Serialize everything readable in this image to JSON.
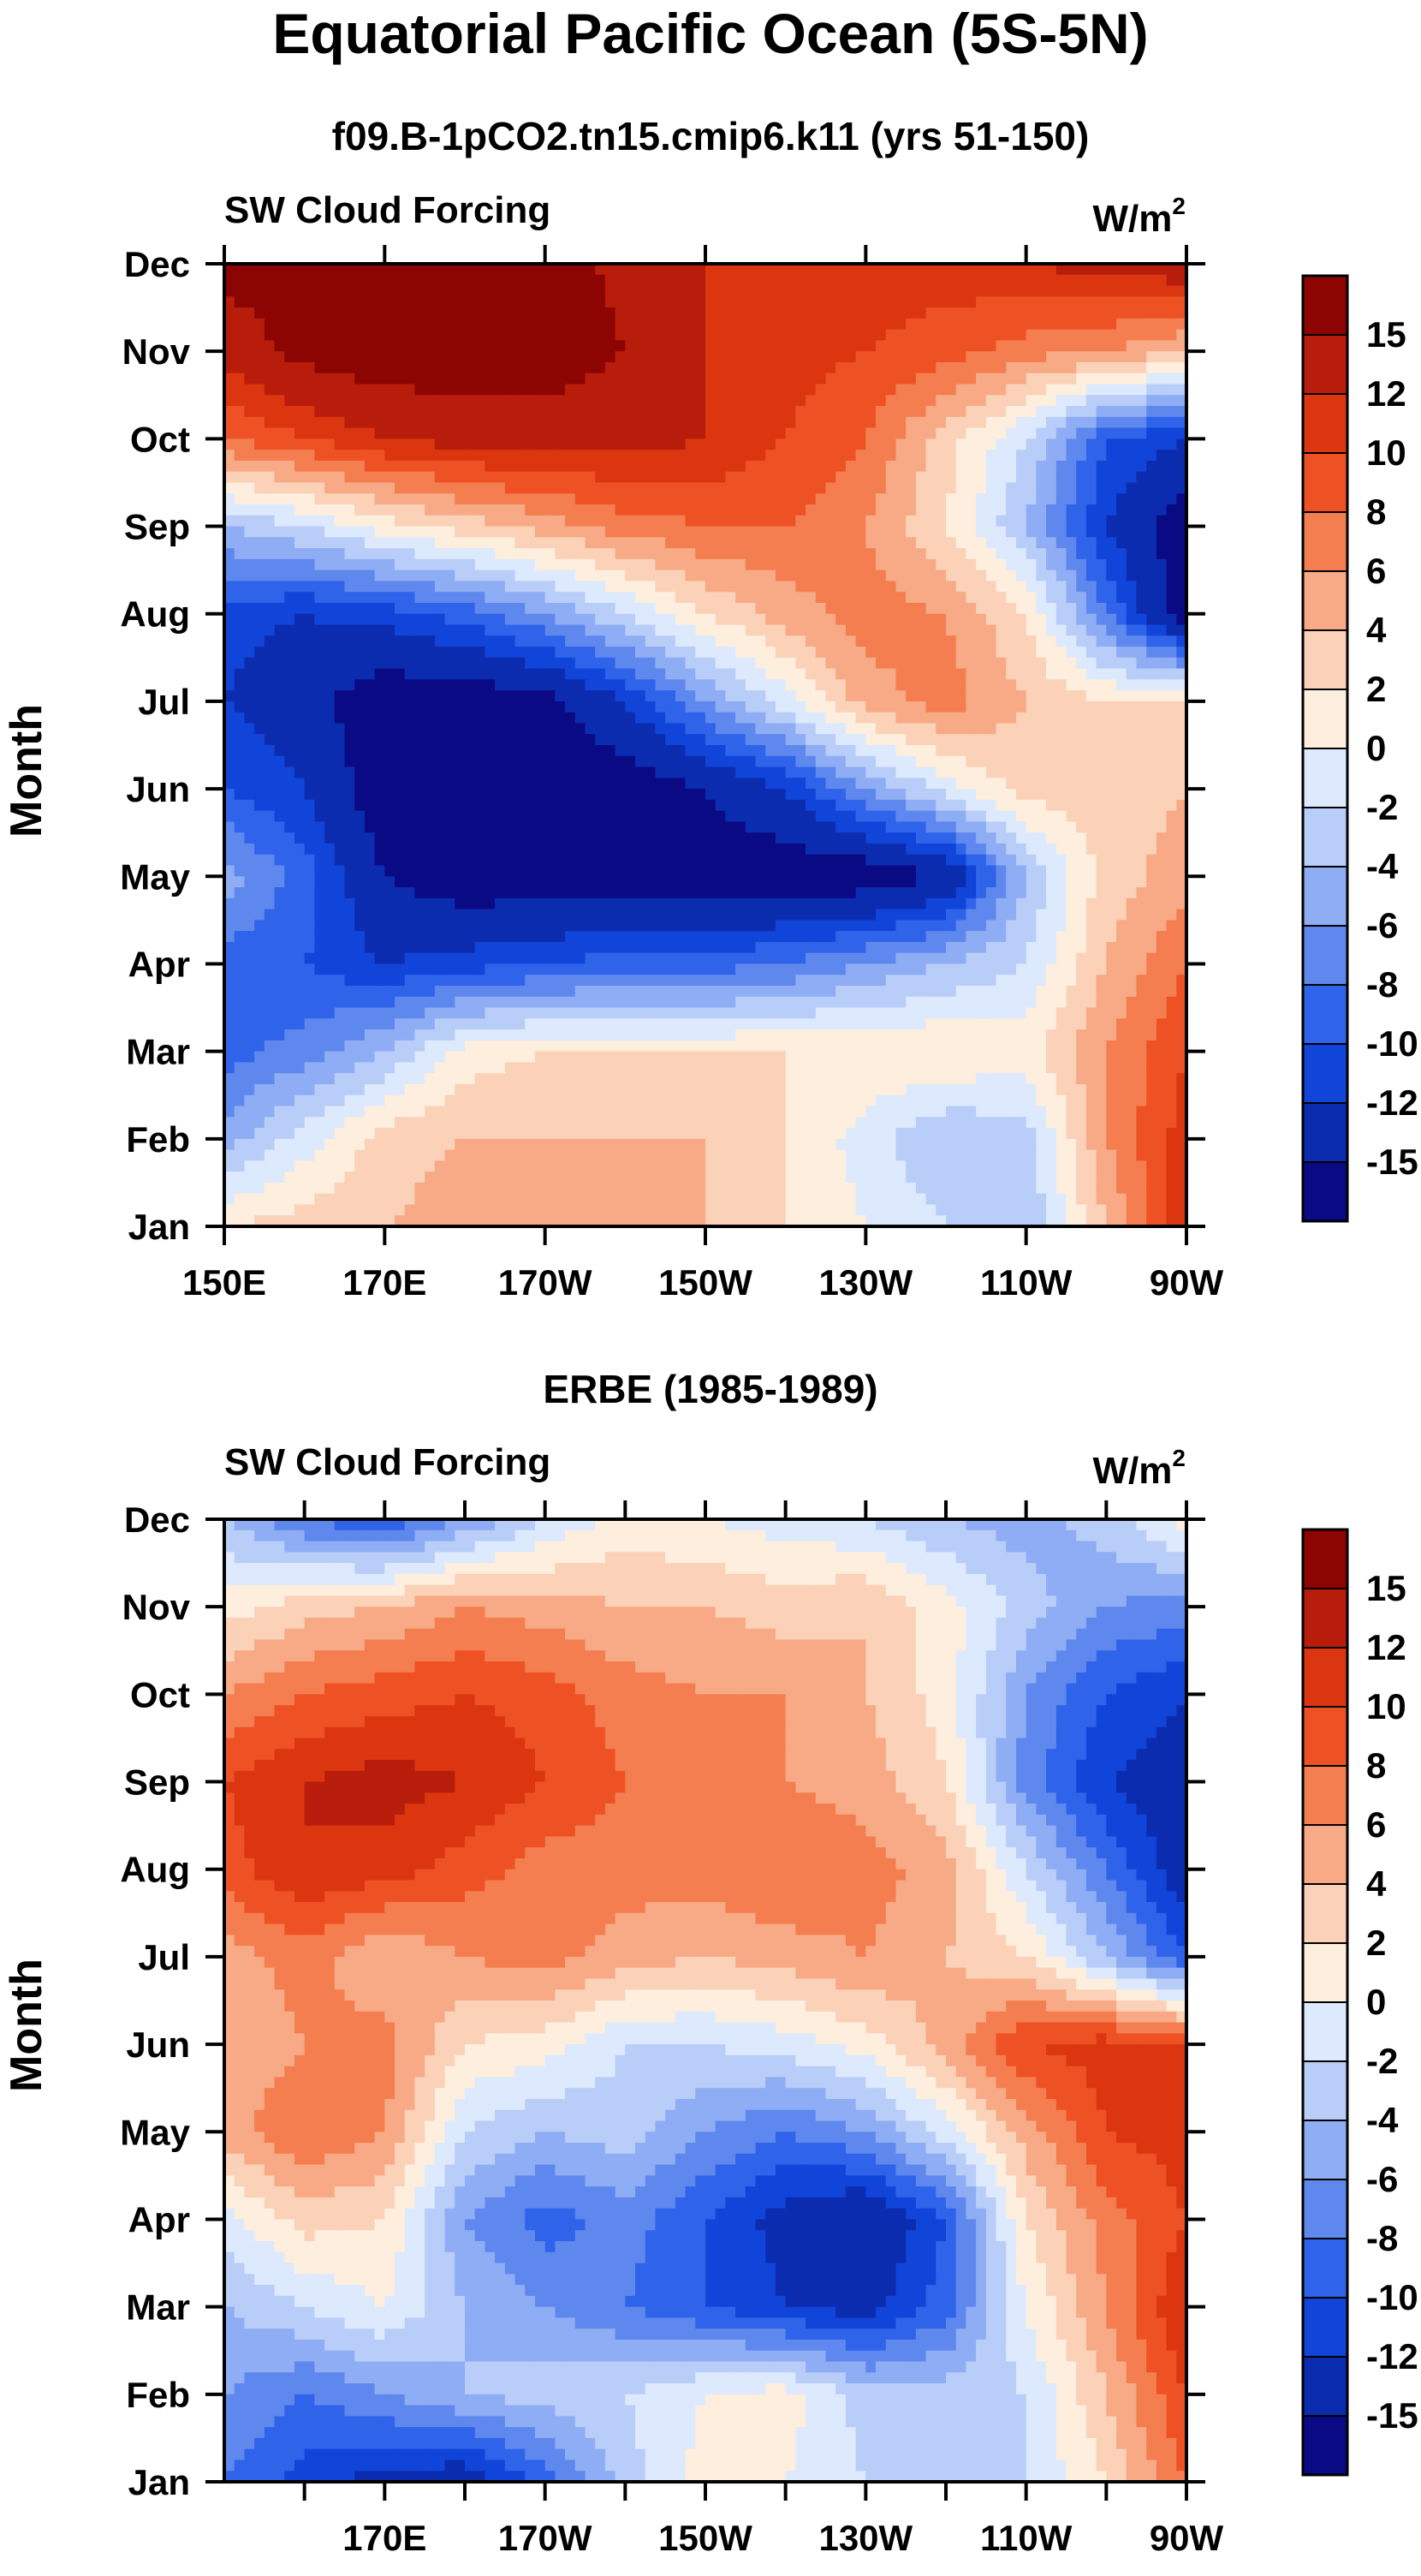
{
  "title": "Equatorial Pacific Ocean (5S-5N)",
  "chart_data": [
    {
      "type": "heatmap",
      "subtitle": "f09.B-1pCO2.tn15.cmip6.k11 (yrs 51-150)",
      "left_label": "SW Cloud Forcing",
      "units_text": "W/m",
      "units_sup": "2",
      "ylabel": "Month",
      "y_ticks": [
        "Jan",
        "Feb",
        "Mar",
        "Apr",
        "May",
        "Jun",
        "Jul",
        "Aug",
        "Sep",
        "Oct",
        "Nov",
        "Dec"
      ],
      "x_range_deg_east": [
        150,
        270
      ],
      "x_ticks": [
        {
          "lon": 150,
          "label": "150E"
        },
        {
          "lon": 170,
          "label": "170E"
        },
        {
          "lon": 190,
          "label": "170W"
        },
        {
          "lon": 210,
          "label": "150W"
        },
        {
          "lon": 230,
          "label": "130W"
        },
        {
          "lon": 250,
          "label": "110W"
        },
        {
          "lon": 270,
          "label": "90W"
        }
      ],
      "colorbar_labels": [
        "15",
        "12",
        "10",
        "8",
        "6",
        "4",
        "2",
        "0",
        "-2",
        "-4",
        "-6",
        "-8",
        "-10",
        "-12",
        "-15"
      ],
      "levels": [
        -15,
        -12,
        -10,
        -8,
        -6,
        -4,
        -2,
        0,
        2,
        4,
        6,
        8,
        10,
        12,
        15
      ],
      "colors": [
        "#0a0a85",
        "#0c2cb0",
        "#1144d8",
        "#2f63ea",
        "#5f88ee",
        "#8eadf4",
        "#b9cdf9",
        "#dde9fc",
        "#fdeede",
        "#fbd1b8",
        "#f7aa85",
        "#f47e50",
        "#ee5224",
        "#db3610",
        "#b81c0a",
        "#8c0503"
      ],
      "lons": [
        150,
        160,
        170,
        180,
        190,
        200,
        210,
        220,
        230,
        240,
        250,
        260,
        270
      ],
      "months": [
        "Jan",
        "Feb",
        "Mar",
        "Apr",
        "May",
        "Jun",
        "Jul",
        "Aug",
        "Sep",
        "Oct",
        "Nov",
        "Dec"
      ],
      "values": [
        [
          2,
          3,
          4,
          5,
          5,
          5,
          4,
          2,
          0,
          -2,
          -4,
          4,
          12
        ],
        [
          -5,
          -1,
          3,
          4,
          4,
          4,
          4,
          2,
          -1,
          -4,
          -3,
          6,
          11
        ],
        [
          -9,
          -7,
          -4,
          1,
          2,
          2,
          2,
          2,
          2,
          2,
          1,
          6,
          10
        ],
        [
          -9,
          -10,
          -12,
          -11,
          -10,
          -9,
          -9,
          -8,
          -6,
          -4,
          -2,
          4,
          8
        ],
        [
          -5,
          -9,
          -15,
          -17,
          -17,
          -17,
          -17,
          -17,
          -17,
          -15,
          -4,
          3,
          5
        ],
        [
          -10,
          -12,
          -17,
          -17,
          -17,
          -17,
          -15,
          -12,
          -6,
          -1,
          3,
          3,
          4
        ],
        [
          -12,
          -14,
          -17,
          -17,
          -16,
          -12,
          -6,
          -1,
          5,
          7,
          4,
          2,
          2
        ],
        [
          -11,
          -12,
          -11,
          -9,
          -6,
          -2,
          2,
          5,
          7,
          6,
          2,
          -8,
          -17
        ],
        [
          -4,
          -2,
          1,
          3,
          5,
          7,
          8,
          8,
          6,
          2,
          -4,
          -12,
          -17
        ],
        [
          8,
          10,
          12,
          13,
          13,
          13,
          12,
          10,
          8,
          3,
          -2,
          -10,
          -12
        ],
        [
          13,
          16,
          17,
          17,
          17,
          15,
          12,
          11,
          10,
          9,
          7,
          6,
          4
        ],
        [
          16,
          17,
          17,
          17,
          17,
          14,
          12,
          11,
          11,
          11,
          12,
          13,
          14
        ]
      ]
    },
    {
      "type": "heatmap",
      "subtitle": "ERBE (1985-1989)",
      "left_label": "SW Cloud Forcing",
      "units_text": "W/m",
      "units_sup": "2",
      "ylabel": "Month",
      "y_ticks": [
        "Jan",
        "Feb",
        "Mar",
        "Apr",
        "May",
        "Jun",
        "Jul",
        "Aug",
        "Sep",
        "Oct",
        "Nov",
        "Dec"
      ],
      "x_range_deg_east": [
        150,
        270
      ],
      "x_ticks": [
        {
          "lon": 160,
          "label": ""
        },
        {
          "lon": 170,
          "label": "170E"
        },
        {
          "lon": 180,
          "label": ""
        },
        {
          "lon": 190,
          "label": "170W"
        },
        {
          "lon": 200,
          "label": ""
        },
        {
          "lon": 210,
          "label": "150W"
        },
        {
          "lon": 220,
          "label": ""
        },
        {
          "lon": 230,
          "label": "130W"
        },
        {
          "lon": 240,
          "label": ""
        },
        {
          "lon": 250,
          "label": "110W"
        },
        {
          "lon": 260,
          "label": ""
        },
        {
          "lon": 270,
          "label": "90W"
        }
      ],
      "colorbar_labels": [
        "15",
        "12",
        "10",
        "8",
        "6",
        "4",
        "2",
        "0",
        "-2",
        "-4",
        "-6",
        "-8",
        "-10",
        "-12",
        "-15"
      ],
      "levels": [
        -15,
        -12,
        -10,
        -8,
        -6,
        -4,
        -2,
        0,
        2,
        4,
        6,
        8,
        10,
        12,
        15
      ],
      "colors": [
        "#0a0a85",
        "#0c2cb0",
        "#1144d8",
        "#2f63ea",
        "#5f88ee",
        "#8eadf4",
        "#b9cdf9",
        "#dde9fc",
        "#fdeede",
        "#fbd1b8",
        "#f7aa85",
        "#f47e50",
        "#ee5224",
        "#db3610",
        "#b81c0a",
        "#8c0503"
      ],
      "lons": [
        150,
        160,
        170,
        180,
        190,
        200,
        210,
        220,
        230,
        240,
        250,
        260,
        270
      ],
      "months": [
        "Jan",
        "Feb",
        "Mar",
        "Apr",
        "May",
        "Jun",
        "Jul",
        "Aug",
        "Sep",
        "Oct",
        "Nov",
        "Dec"
      ],
      "values": [
        [
          -8,
          -11,
          -13,
          -14,
          -9,
          -3,
          1,
          0,
          -2,
          -3,
          -2,
          2,
          8
        ],
        [
          -6,
          -8,
          -6,
          -4,
          -3,
          -2,
          0,
          1,
          -3,
          -3,
          -2,
          4,
          10
        ],
        [
          -4,
          -2,
          0,
          -4,
          -6,
          -8,
          -10,
          -12,
          -13,
          -9,
          0,
          6,
          12
        ],
        [
          -1,
          3,
          2,
          -6,
          -9,
          -7,
          -10,
          -13,
          -15,
          -10,
          2,
          7,
          10
        ],
        [
          5,
          8,
          6,
          -2,
          -4,
          -3,
          -6,
          -8,
          -6,
          -1,
          5,
          10,
          11
        ],
        [
          4,
          6,
          7,
          2,
          1,
          -2,
          -2,
          -1,
          1,
          5,
          10,
          11,
          10
        ],
        [
          5,
          7,
          4,
          6,
          7,
          5,
          4,
          5,
          6,
          4,
          2,
          -4,
          -10
        ],
        [
          9,
          12,
          11,
          9,
          7,
          7,
          7,
          8,
          7,
          5,
          -2,
          -8,
          -14
        ],
        [
          10,
          12,
          13,
          12,
          10,
          8,
          8,
          6,
          5,
          2,
          -7,
          -12,
          -14
        ],
        [
          6,
          8,
          9,
          10,
          9,
          7,
          6,
          6,
          4,
          1,
          -6,
          -10,
          -12
        ],
        [
          1,
          3,
          4,
          6,
          5,
          4,
          4,
          3,
          4,
          1,
          -3,
          -6,
          -7
        ],
        [
          -4,
          -8,
          -10,
          -6,
          -2,
          1,
          0,
          -1,
          -2,
          -4,
          -5,
          -3,
          1
        ]
      ]
    }
  ]
}
